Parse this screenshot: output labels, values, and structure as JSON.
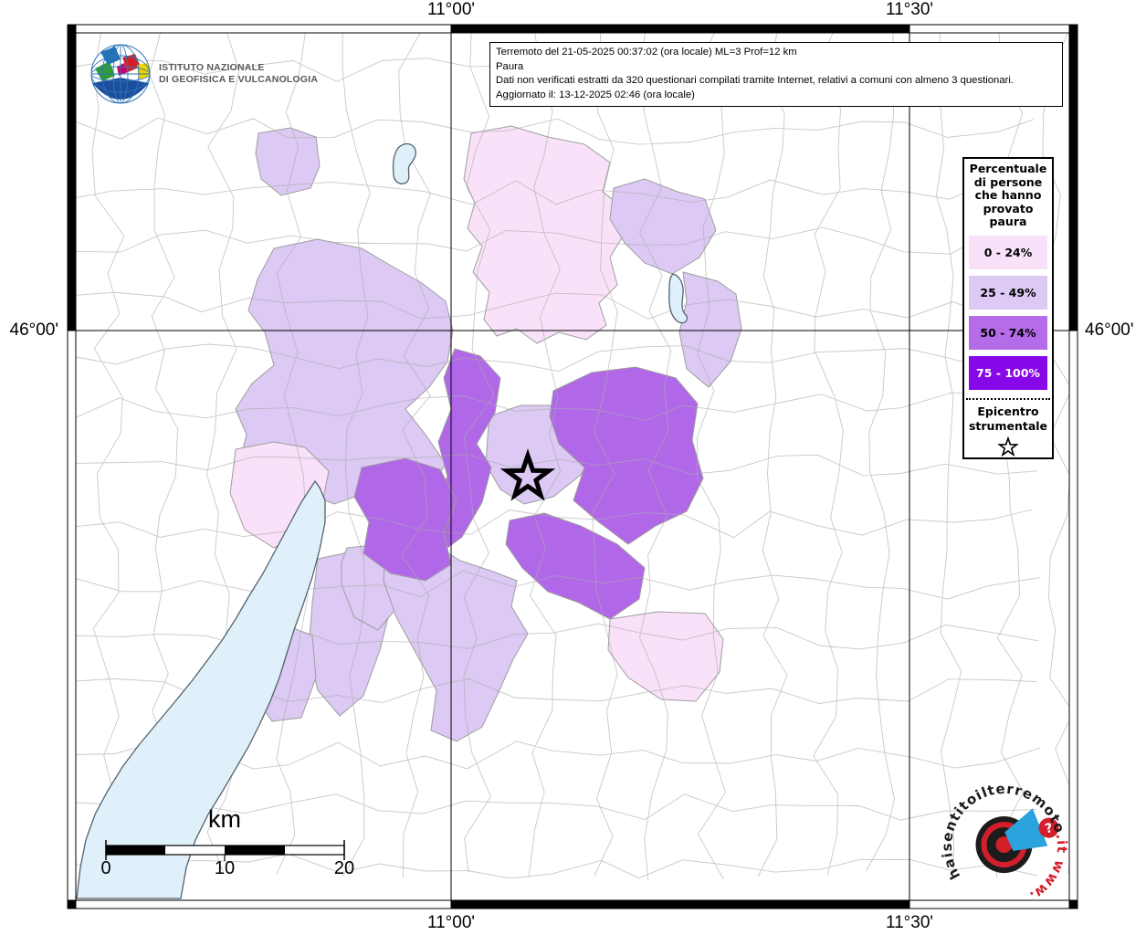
{
  "branding": {
    "ingv_line1": "ISTITUTO NAZIONALE",
    "ingv_line2": "DI GEOFISICA E VULCANOLOGIA"
  },
  "info_box": {
    "line1": "Terremoto del 21-05-2025 00:37:02 (ora locale) ML=3 Prof=12 km",
    "line2": "Paura",
    "line3": "Dati non verificati estratti da 320 questionari compilati tramite Internet, relativi a comuni con almeno 3 questionari.",
    "line4": "Aggiornato il: 13-12-2025 02:46 (ora locale)"
  },
  "axis": {
    "top_left_lon": "11°00'",
    "top_right_lon": "11°30'",
    "bottom_left_lon": "11°00'",
    "bottom_right_lon": "11°30'",
    "left_lat": "46°00'",
    "right_lat": "46°00'"
  },
  "legend": {
    "title": "Percentuale di persone che hanno provato paura",
    "classes": [
      {
        "label": "0 - 24%",
        "color": "#f9e2f9",
        "text_color": "#000000"
      },
      {
        "label": "25 - 49%",
        "color": "#dcc9f4",
        "text_color": "#000000"
      },
      {
        "label": "50 - 74%",
        "color": "#b46ce8",
        "text_color": "#000000"
      },
      {
        "label": "75 - 100%",
        "color": "#8807e8",
        "text_color": "#ffffff"
      }
    ],
    "epicenter_label_line1": "Epicentro",
    "epicenter_label_line2": "strumentale",
    "epicenter_symbol": "star-icon"
  },
  "scalebar": {
    "unit": "km",
    "tick0": "0",
    "tick1": "10",
    "tick2": "20"
  },
  "watermark": {
    "text_main": "haisentitoilterremoto",
    "text_suffix": ".it",
    "text_www": "www.",
    "question_mark": "?",
    "red": "#d31f2b",
    "blue": "#2ba3dc"
  },
  "map_colors": {
    "class_0_24": "#f9e2f9",
    "class_25_49": "#dcc9f4",
    "class_50_74": "#b168e8",
    "class_75_100": "#8807e8",
    "lake": "#dff0fb",
    "boundary": "#ababab"
  }
}
